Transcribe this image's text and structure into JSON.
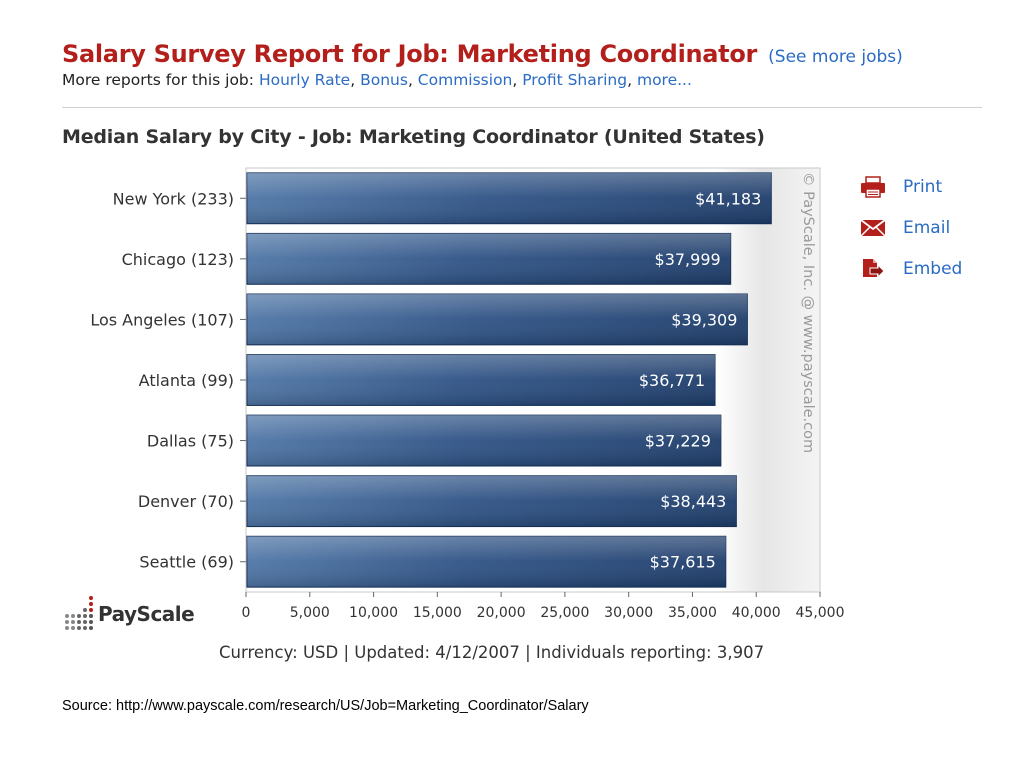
{
  "header": {
    "title": "Salary Survey Report for Job: Marketing Coordinator",
    "see_more": "(See more jobs)",
    "more_reports_prefix": "More reports for this job:",
    "links": [
      "Hourly Rate",
      "Bonus",
      "Commission",
      "Profit Sharing",
      "more..."
    ]
  },
  "side_links": [
    {
      "label": "Print",
      "icon": "printer-icon"
    },
    {
      "label": "Email",
      "icon": "envelope-icon"
    },
    {
      "label": "Embed",
      "icon": "embed-icon"
    }
  ],
  "logo_text": "PayScale",
  "footer": "Currency: USD  |  Updated: 4/12/2007  |  Individuals reporting: 3,907",
  "source": "Source: http://www.payscale.com/research/US/Job=Marketing_Coordinator/Salary",
  "colors": {
    "bar_dark": "#1e3d6b",
    "bar_light": "#4f76a6",
    "title_red": "#b3201c",
    "link_blue": "#2a6bc4",
    "plot_bg": "#ececec"
  },
  "chart_data": {
    "type": "bar",
    "orientation": "horizontal",
    "title": "Median Salary by City - Job: Marketing Coordinator (United States)",
    "categories": [
      "New York (233)",
      "Chicago (123)",
      "Los Angeles (107)",
      "Atlanta (99)",
      "Dallas (75)",
      "Denver (70)",
      "Seattle (69)"
    ],
    "values": [
      41183,
      37999,
      39309,
      36771,
      37229,
      38443,
      37615
    ],
    "value_labels": [
      "$41,183",
      "$37,999",
      "$39,309",
      "$36,771",
      "$37,229",
      "$38,443",
      "$37,615"
    ],
    "xlim": [
      0,
      45000
    ],
    "xticks": [
      0,
      5000,
      10000,
      15000,
      20000,
      25000,
      30000,
      35000,
      40000,
      45000
    ],
    "xtick_labels": [
      "0",
      "5,000",
      "10,000",
      "15,000",
      "20,000",
      "25,000",
      "30,000",
      "35,000",
      "40,000",
      "45,000"
    ],
    "watermark": "© PayScale, Inc. @ www.payscale.com",
    "xlabel": "",
    "ylabel": ""
  }
}
